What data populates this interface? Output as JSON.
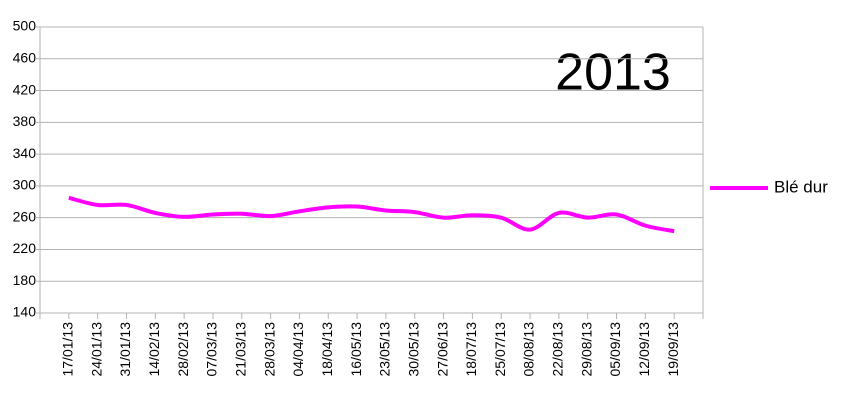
{
  "chart_data": {
    "type": "line",
    "title": "2013",
    "categories": [
      "17/01/13",
      "24/01/13",
      "31/01/13",
      "14/02/13",
      "28/02/13",
      "07/03/13",
      "21/03/13",
      "28/03/13",
      "04/04/13",
      "18/04/13",
      "16/05/13",
      "23/05/13",
      "30/05/13",
      "27/06/13",
      "18/07/13",
      "25/07/13",
      "08/08/13",
      "22/08/13",
      "29/08/13",
      "05/09/13",
      "12/09/13",
      "19/09/13"
    ],
    "series": [
      {
        "name": "Blé dur",
        "color": "#ff00ff",
        "values": [
          285,
          276,
          276,
          266,
          261,
          264,
          265,
          262,
          268,
          273,
          274,
          269,
          267,
          260,
          263,
          260,
          245,
          266,
          260,
          264,
          250,
          243
        ]
      }
    ],
    "ylim": [
      140,
      500
    ],
    "yticks": [
      140,
      180,
      220,
      260,
      300,
      340,
      380,
      420,
      460,
      500
    ],
    "grid": true,
    "legend": "right"
  }
}
